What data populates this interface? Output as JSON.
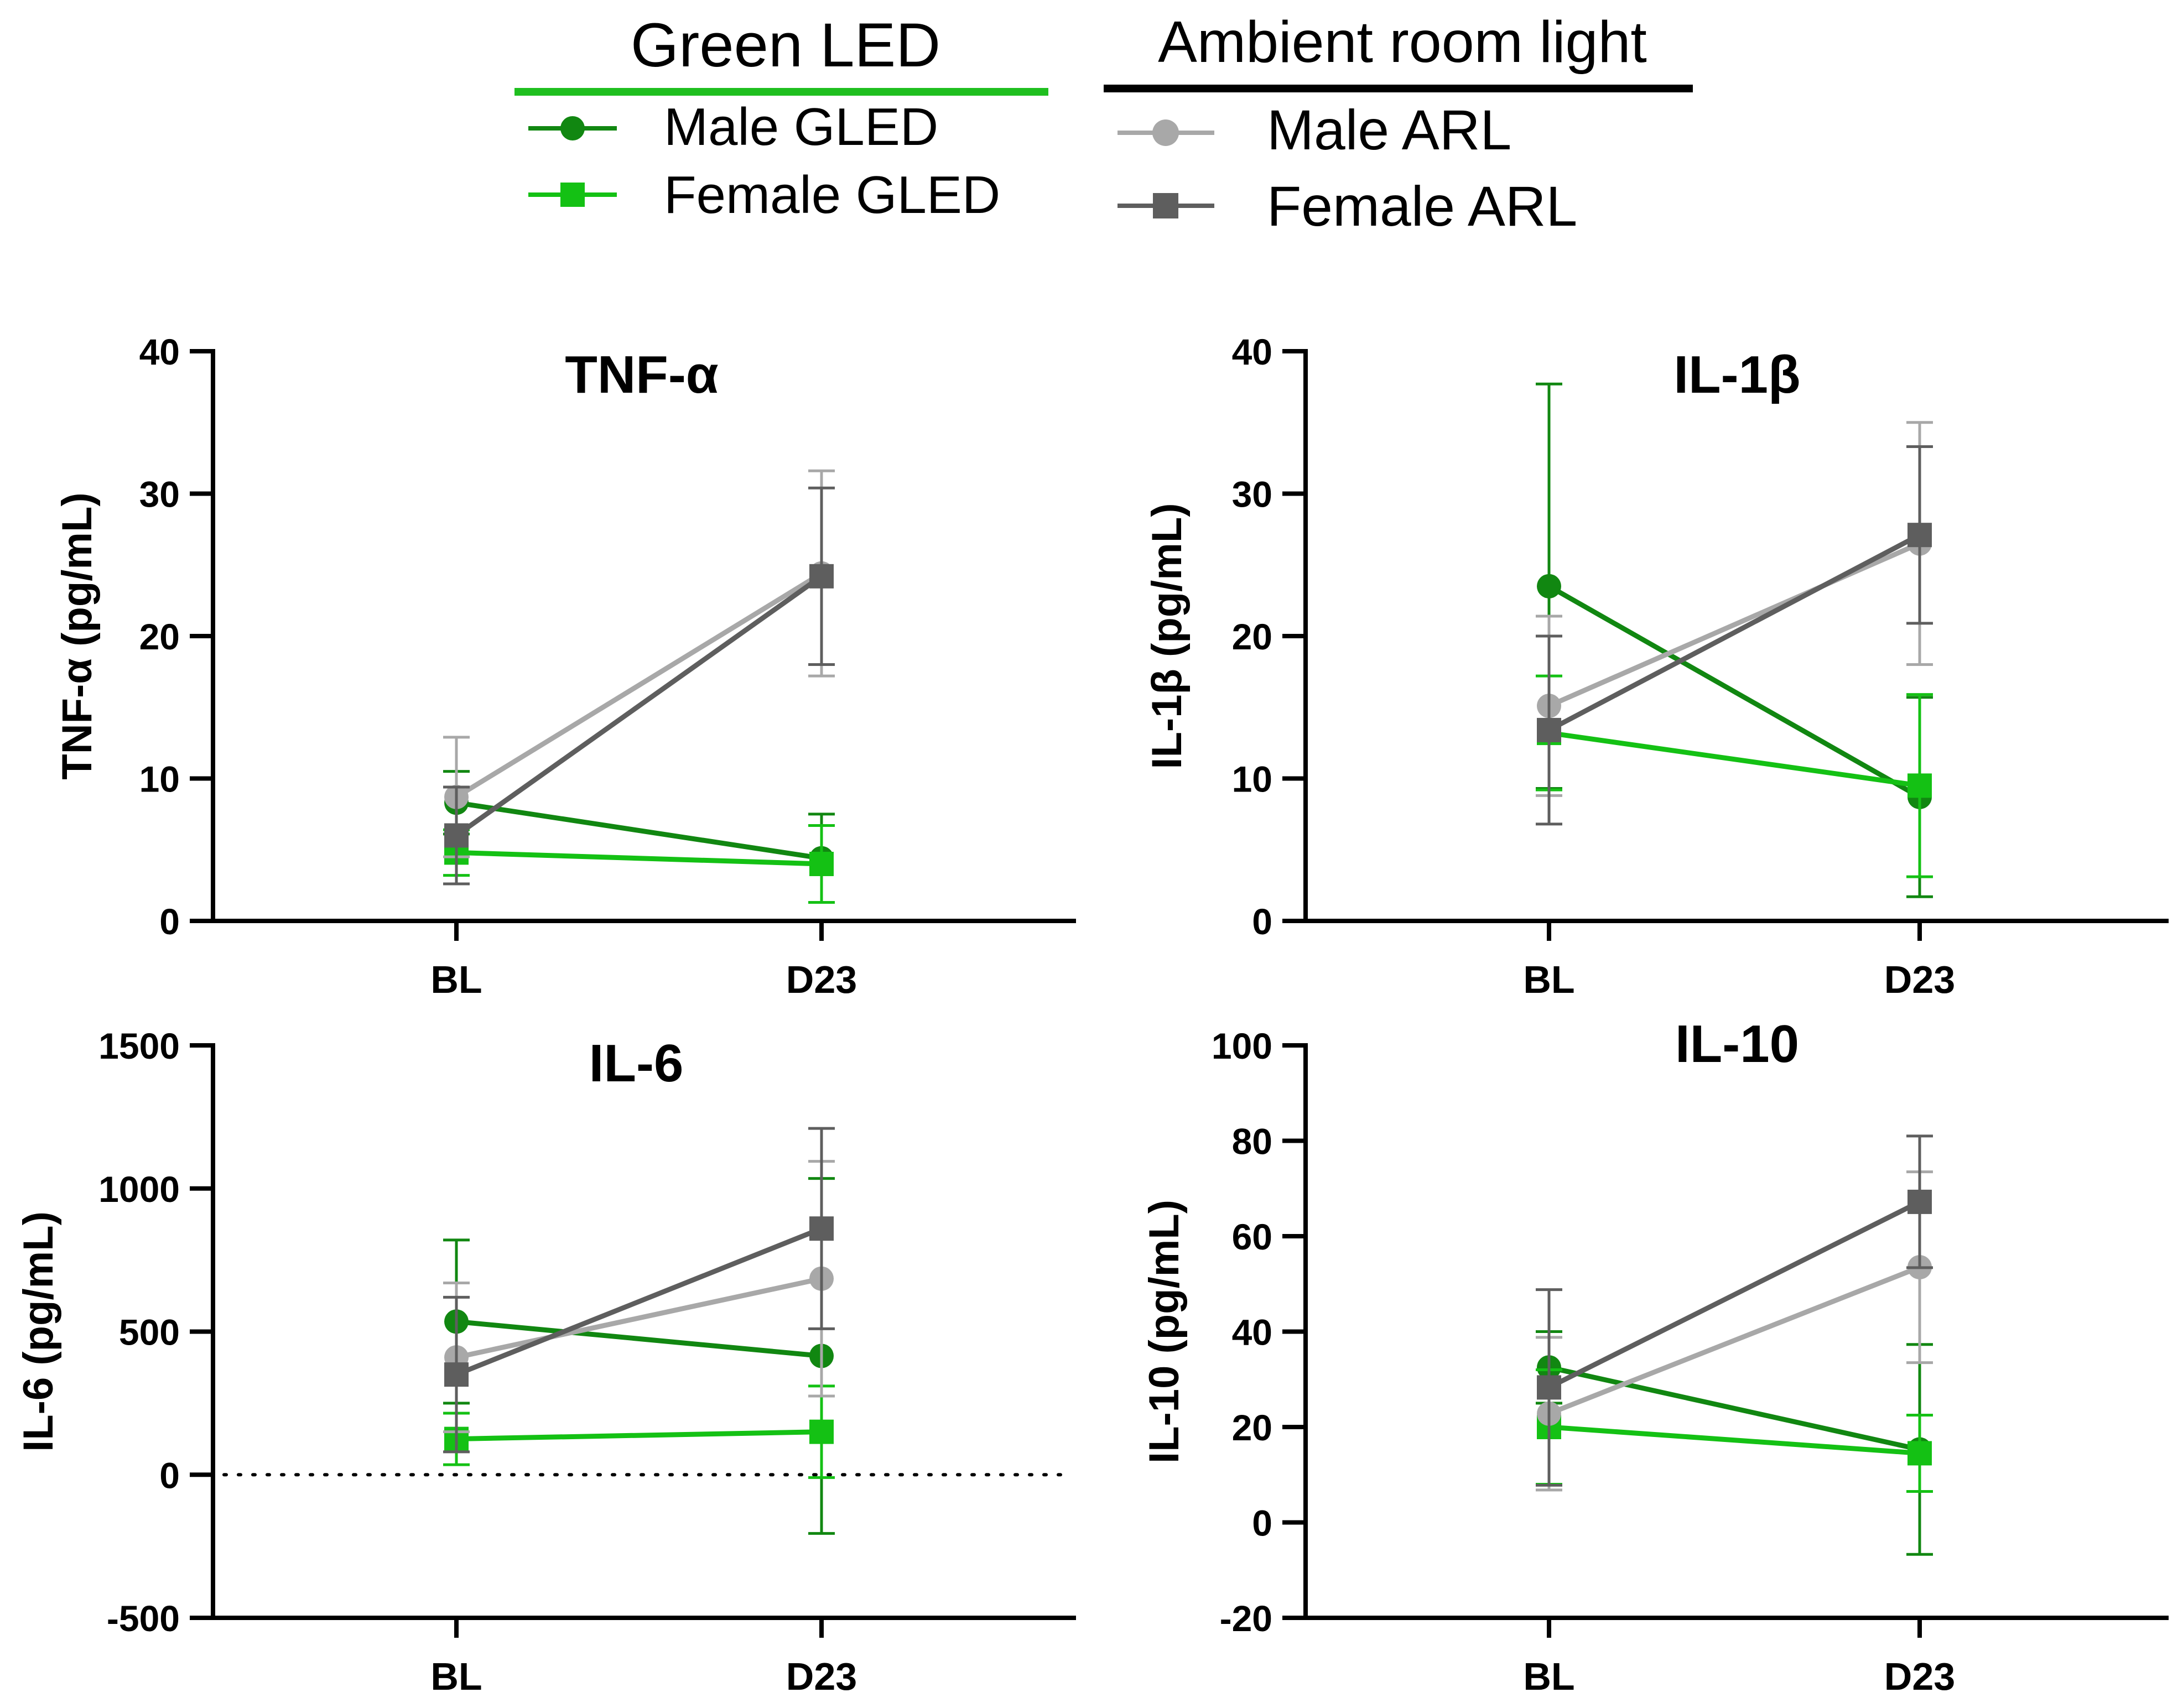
{
  "legend": {
    "groups": [
      {
        "title": "Green LED",
        "rule_color": "#1fbf1f",
        "entries": [
          {
            "label": "Male GLED",
            "color": "#118711",
            "marker": "circle"
          },
          {
            "label": "Female GLED",
            "color": "#14c114",
            "marker": "square"
          }
        ]
      },
      {
        "title": "Ambient room light",
        "rule_color": "#000000",
        "entries": [
          {
            "label": "Male ARL",
            "color": "#a8a8a8",
            "marker": "circle"
          },
          {
            "label": "Female ARL",
            "color": "#5e5e5e",
            "marker": "square"
          }
        ]
      }
    ]
  },
  "chart_data": [
    {
      "type": "line",
      "title": "TNF-α",
      "ylabel": "TNF-α (pg/mL)",
      "xlabel": "",
      "categories": [
        "BL",
        "D23"
      ],
      "ylim": [
        0,
        40
      ],
      "yticks": [
        "0",
        "10",
        "20",
        "30",
        "40"
      ],
      "zero_line": false,
      "series": [
        {
          "name": "Male GLED",
          "color": "#118711",
          "marker": "circle",
          "values": [
            8.3,
            4.4
          ],
          "err": [
            2.2,
            3.1
          ]
        },
        {
          "name": "Female GLED",
          "color": "#14c114",
          "marker": "square",
          "values": [
            4.8,
            4.0
          ],
          "err": [
            1.6,
            2.7
          ]
        },
        {
          "name": "Male ARL",
          "color": "#a8a8a8",
          "marker": "circle",
          "values": [
            8.7,
            24.4
          ],
          "err": [
            4.2,
            7.2
          ]
        },
        {
          "name": "Female ARL",
          "color": "#5e5e5e",
          "marker": "square",
          "values": [
            6.0,
            24.2
          ],
          "err": [
            3.4,
            6.2
          ]
        }
      ]
    },
    {
      "type": "line",
      "title": "IL-1β",
      "ylabel": "IL-1β (pg/mL)",
      "xlabel": "",
      "categories": [
        "BL",
        "D23"
      ],
      "ylim": [
        0,
        40
      ],
      "yticks": [
        "0",
        "10",
        "20",
        "30",
        "40"
      ],
      "zero_line": false,
      "series": [
        {
          "name": "Male GLED",
          "color": "#118711",
          "marker": "circle",
          "values": [
            23.5,
            8.7
          ],
          "err": [
            14.2,
            7.0
          ]
        },
        {
          "name": "Female GLED",
          "color": "#14c114",
          "marker": "square",
          "values": [
            13.2,
            9.5
          ],
          "err": [
            4.0,
            6.4
          ]
        },
        {
          "name": "Male ARL",
          "color": "#a8a8a8",
          "marker": "circle",
          "values": [
            15.1,
            26.5
          ],
          "err": [
            6.3,
            8.5
          ]
        },
        {
          "name": "Female ARL",
          "color": "#5e5e5e",
          "marker": "square",
          "values": [
            13.4,
            27.1
          ],
          "err": [
            6.6,
            6.2
          ]
        }
      ]
    },
    {
      "type": "line",
      "title": "IL-6",
      "ylabel": "IL-6 (pg/mL)",
      "xlabel": "",
      "categories": [
        "BL",
        "D23"
      ],
      "ylim": [
        -500,
        1500
      ],
      "yticks": [
        "-500",
        "0",
        "500",
        "1000",
        "1500"
      ],
      "zero_line": true,
      "series": [
        {
          "name": "Male GLED",
          "color": "#118711",
          "marker": "circle",
          "values": [
            535,
            415
          ],
          "err": [
            285,
            620
          ]
        },
        {
          "name": "Female GLED",
          "color": "#14c114",
          "marker": "square",
          "values": [
            125,
            150
          ],
          "err": [
            90,
            160
          ]
        },
        {
          "name": "Male ARL",
          "color": "#a8a8a8",
          "marker": "circle",
          "values": [
            410,
            685
          ],
          "err": [
            260,
            410
          ]
        },
        {
          "name": "Female ARL",
          "color": "#5e5e5e",
          "marker": "square",
          "values": [
            350,
            860
          ],
          "err": [
            270,
            350
          ]
        }
      ]
    },
    {
      "type": "line",
      "title": "IL-10",
      "ylabel": "IL-10 (pg/mL)",
      "xlabel": "",
      "categories": [
        "BL",
        "D23"
      ],
      "ylim": [
        -20,
        100
      ],
      "yticks": [
        "-20",
        "0",
        "20",
        "40",
        "60",
        "80",
        "100"
      ],
      "zero_line": false,
      "series": [
        {
          "name": "Male GLED",
          "color": "#118711",
          "marker": "circle",
          "values": [
            32.5,
            15.3
          ],
          "err": [
            7.5,
            22.0
          ]
        },
        {
          "name": "Female GLED",
          "color": "#14c114",
          "marker": "square",
          "values": [
            20.0,
            14.5
          ],
          "err": [
            12.0,
            8.0
          ]
        },
        {
          "name": "Male ARL",
          "color": "#a8a8a8",
          "marker": "circle",
          "values": [
            22.8,
            53.5
          ],
          "err": [
            16.0,
            20.0
          ]
        },
        {
          "name": "Female ARL",
          "color": "#5e5e5e",
          "marker": "square",
          "values": [
            28.3,
            67.2
          ],
          "err": [
            20.5,
            13.8
          ]
        }
      ]
    }
  ]
}
